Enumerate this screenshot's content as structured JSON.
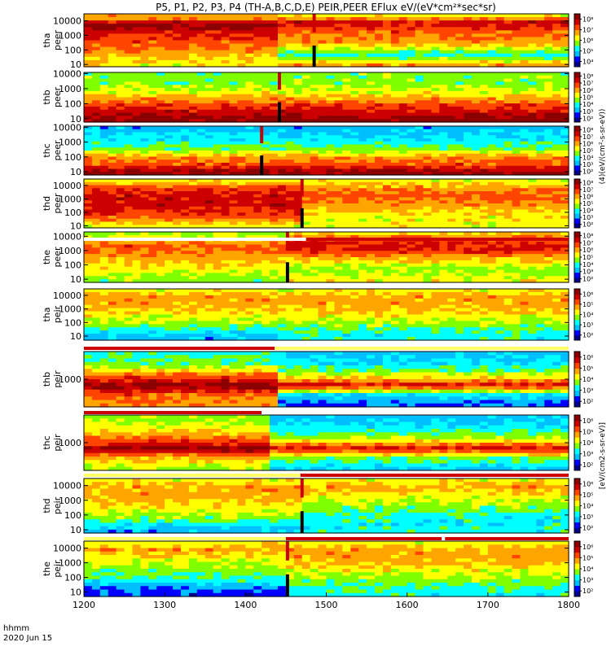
{
  "title": "P5, P1, P2, P3, P4 (TH-A,B,C,D,E) PEIR,PEER EFlux eV/(eV*cm²*sec*sr)",
  "time_axis": {
    "label_line1": "hhmm",
    "label_line2": "2020 Jun 15"
  },
  "colorbar_label_peer": "(4)(eV/(cm²-s-sr-eV))",
  "colorbar_label_peir": "[eV/(cm2-s-sr-eV)]",
  "colors": {
    "scale": [
      "#00008b",
      "#0000ff",
      "#00bfff",
      "#00ffff",
      "#7fff00",
      "#ffff00",
      "#ffa500",
      "#ff4500",
      "#cc0000",
      "#8b0000"
    ],
    "background": "#ffffff",
    "flag_red": "#cc0000",
    "flag_yellow": "#ffff66"
  },
  "chart_data": [
    {
      "type": "heatmap",
      "id": "tha_peer",
      "ylabel": "tha peer",
      "x_range": [
        1200,
        1800
      ],
      "y_log": true,
      "ylim": [
        7,
        30000
      ],
      "y_ticks": [
        "10",
        "100",
        "1000",
        "10000"
      ],
      "colorbar_ticks": [
        "10⁴",
        "10⁵",
        "10⁶",
        "10⁷",
        "10⁸"
      ],
      "spike_x": 1485,
      "change_x": 1445,
      "profile_before": [
        [
          10,
          5
        ],
        [
          60,
          6
        ],
        [
          300,
          7
        ],
        [
          2000,
          8
        ],
        [
          6000,
          9
        ],
        [
          15000,
          6
        ]
      ],
      "profile_after": [
        [
          10,
          6
        ],
        [
          40,
          3
        ],
        [
          300,
          6
        ],
        [
          2000,
          7
        ],
        [
          8000,
          8
        ],
        [
          20000,
          5
        ]
      ]
    },
    {
      "type": "heatmap",
      "id": "thb_peer",
      "ylabel": "thb peer",
      "x_range": [
        1200,
        1800
      ],
      "y_log": true,
      "ylim": [
        6,
        12000
      ],
      "y_ticks": [
        "10",
        "100",
        "1000",
        "10000"
      ],
      "colorbar_ticks": [
        "10²",
        "10³",
        "10⁴",
        "10⁵",
        "10⁶",
        "10⁷",
        "10⁸"
      ],
      "spike_x": 1442,
      "change_x": 1442,
      "profile_before": [
        [
          8,
          9
        ],
        [
          30,
          8
        ],
        [
          100,
          7
        ],
        [
          500,
          5
        ],
        [
          2000,
          4
        ],
        [
          10000,
          4
        ]
      ],
      "profile_after": [
        [
          8,
          9
        ],
        [
          30,
          8
        ],
        [
          100,
          7
        ],
        [
          500,
          5
        ],
        [
          2000,
          4
        ],
        [
          10000,
          4
        ]
      ]
    },
    {
      "type": "heatmap",
      "id": "thc_peer",
      "ylabel": "thc peer",
      "x_range": [
        1200,
        1800
      ],
      "y_log": true,
      "ylim": [
        6,
        12000
      ],
      "y_ticks": [
        "10",
        "100",
        "1000",
        "10000"
      ],
      "colorbar_ticks": [
        "10²",
        "10³",
        "10⁴",
        "10⁵",
        "10⁶",
        "10⁷",
        "10⁸"
      ],
      "spike_x": 1420,
      "change_x": 1420,
      "profile_before": [
        [
          8,
          9
        ],
        [
          30,
          7
        ],
        [
          100,
          6
        ],
        [
          300,
          4
        ],
        [
          1000,
          3
        ],
        [
          10000,
          2
        ]
      ],
      "profile_after": [
        [
          8,
          9
        ],
        [
          30,
          7
        ],
        [
          100,
          6
        ],
        [
          300,
          4
        ],
        [
          1000,
          3
        ],
        [
          10000,
          2
        ]
      ]
    },
    {
      "type": "heatmap",
      "id": "thd_peer",
      "ylabel": "thd peer",
      "x_range": [
        1200,
        1800
      ],
      "y_log": true,
      "ylim": [
        7,
        30000
      ],
      "y_ticks": [
        "10",
        "100",
        "1000",
        "10000"
      ],
      "colorbar_ticks": [
        "10²",
        "10³",
        "10⁴",
        "10⁵",
        "10⁶",
        "10⁷",
        "10⁸"
      ],
      "spike_x": 1470,
      "change_x": 1470,
      "profile_before": [
        [
          10,
          5
        ],
        [
          50,
          7
        ],
        [
          300,
          8
        ],
        [
          2000,
          8
        ],
        [
          8000,
          7
        ],
        [
          20000,
          5
        ]
      ],
      "profile_after": [
        [
          10,
          5
        ],
        [
          50,
          5
        ],
        [
          300,
          6
        ],
        [
          2000,
          7
        ],
        [
          8000,
          6
        ],
        [
          20000,
          5
        ]
      ]
    },
    {
      "type": "heatmap",
      "id": "the_peer",
      "ylabel": "the peer",
      "x_range": [
        1200,
        1800
      ],
      "y_log": true,
      "ylim": [
        6,
        20000
      ],
      "y_ticks": [
        "10",
        "100",
        "1000",
        "10000"
      ],
      "colorbar_ticks": [
        "10²",
        "10³",
        "10⁴",
        "10⁵",
        "10⁶",
        "10⁷",
        "10⁸"
      ],
      "spike_x": 1452,
      "change_x": 1452,
      "profile_before": [
        [
          10,
          4
        ],
        [
          50,
          5
        ],
        [
          300,
          6
        ],
        [
          2000,
          7
        ],
        [
          8000,
          5
        ],
        [
          20000,
          4
        ]
      ],
      "profile_after": [
        [
          10,
          5
        ],
        [
          50,
          4
        ],
        [
          300,
          6
        ],
        [
          1500,
          8
        ],
        [
          6000,
          7
        ],
        [
          20000,
          5
        ]
      ]
    },
    {
      "type": "heatmap",
      "id": "tha_peir",
      "ylabel": "tha peir",
      "x_range": [
        1200,
        1800
      ],
      "y_log": true,
      "ylim": [
        5,
        30000
      ],
      "y_ticks": [
        "10",
        "100",
        "1000",
        "10000"
      ],
      "colorbar_ticks": [
        "10²",
        "10³",
        "10⁴",
        "10⁵",
        "10⁶"
      ],
      "spike_x": null,
      "change_x": 1445,
      "profile_before": [
        [
          10,
          2
        ],
        [
          60,
          4
        ],
        [
          300,
          5
        ],
        [
          2000,
          6
        ],
        [
          8000,
          6
        ],
        [
          20000,
          5
        ]
      ],
      "profile_after": [
        [
          10,
          3
        ],
        [
          60,
          4
        ],
        [
          300,
          5
        ],
        [
          2000,
          6
        ],
        [
          8000,
          6
        ],
        [
          20000,
          5
        ]
      ]
    },
    {
      "type": "heatmap",
      "id": "thb_peir",
      "ylabel": "thb peir",
      "x_range": [
        1200,
        1800
      ],
      "y_log": true,
      "ylim": [
        100,
        10000
      ],
      "y_ticks": [
        "1000"
      ],
      "colorbar_ticks": [
        "10²",
        "10³",
        "10⁴",
        "10⁵",
        "10⁶"
      ],
      "spike_x": null,
      "change_x": 1440,
      "profile_before": [
        [
          100,
          6
        ],
        [
          300,
          7
        ],
        [
          600,
          9
        ],
        [
          1200,
          7
        ],
        [
          3000,
          4
        ],
        [
          10000,
          3
        ]
      ],
      "profile_after": [
        [
          100,
          1
        ],
        [
          300,
          3
        ],
        [
          600,
          8
        ],
        [
          1200,
          5
        ],
        [
          3000,
          3
        ],
        [
          10000,
          2
        ]
      ]
    },
    {
      "type": "heatmap",
      "id": "thc_peir",
      "ylabel": "thc peir",
      "x_range": [
        1200,
        1800
      ],
      "y_log": true,
      "ylim": [
        100,
        10000
      ],
      "y_ticks": [
        "1000"
      ],
      "colorbar_ticks": [
        "10²",
        "10³",
        "10⁴",
        "10⁵",
        "10⁶"
      ],
      "spike_x": null,
      "change_x": 1428,
      "profile_before": [
        [
          100,
          4
        ],
        [
          300,
          6
        ],
        [
          600,
          9
        ],
        [
          1200,
          7
        ],
        [
          3000,
          5
        ],
        [
          10000,
          4
        ]
      ],
      "profile_after": [
        [
          100,
          2
        ],
        [
          300,
          4
        ],
        [
          600,
          8
        ],
        [
          1200,
          5
        ],
        [
          3000,
          3
        ],
        [
          10000,
          2
        ]
      ]
    },
    {
      "type": "heatmap",
      "id": "thd_peir",
      "ylabel": "thd peir",
      "x_range": [
        1200,
        1800
      ],
      "y_log": true,
      "ylim": [
        6,
        30000
      ],
      "y_ticks": [
        "10",
        "100",
        "1000",
        "10000"
      ],
      "colorbar_ticks": [
        "10²",
        "10³",
        "10⁴",
        "10⁵",
        "10⁶"
      ],
      "spike_x": 1470,
      "change_x": 1470,
      "profile_before": [
        [
          10,
          2
        ],
        [
          60,
          4
        ],
        [
          300,
          5
        ],
        [
          2000,
          6
        ],
        [
          8000,
          6
        ],
        [
          20000,
          5
        ]
      ],
      "profile_after": [
        [
          10,
          3
        ],
        [
          60,
          3
        ],
        [
          300,
          4
        ],
        [
          2000,
          5
        ],
        [
          8000,
          6
        ],
        [
          20000,
          5
        ]
      ]
    },
    {
      "type": "heatmap",
      "id": "the_peir",
      "ylabel": "the peir",
      "x_range": [
        1200,
        1800
      ],
      "y_log": true,
      "ylim": [
        5,
        30000
      ],
      "y_ticks": [
        "10",
        "100",
        "1000",
        "10000"
      ],
      "colorbar_ticks": [
        "10²",
        "10³",
        "10⁴",
        "10⁵",
        "10⁶"
      ],
      "spike_x": 1452,
      "change_x": 1452,
      "profile_before": [
        [
          10,
          1
        ],
        [
          60,
          3
        ],
        [
          300,
          4
        ],
        [
          2000,
          5
        ],
        [
          8000,
          6
        ],
        [
          20000,
          5
        ]
      ],
      "profile_after": [
        [
          10,
          3
        ],
        [
          60,
          4
        ],
        [
          300,
          5
        ],
        [
          2000,
          6
        ],
        [
          8000,
          6
        ],
        [
          20000,
          5
        ]
      ]
    }
  ],
  "x_ticks": [
    1200,
    1300,
    1400,
    1500,
    1600,
    1700,
    1800
  ]
}
